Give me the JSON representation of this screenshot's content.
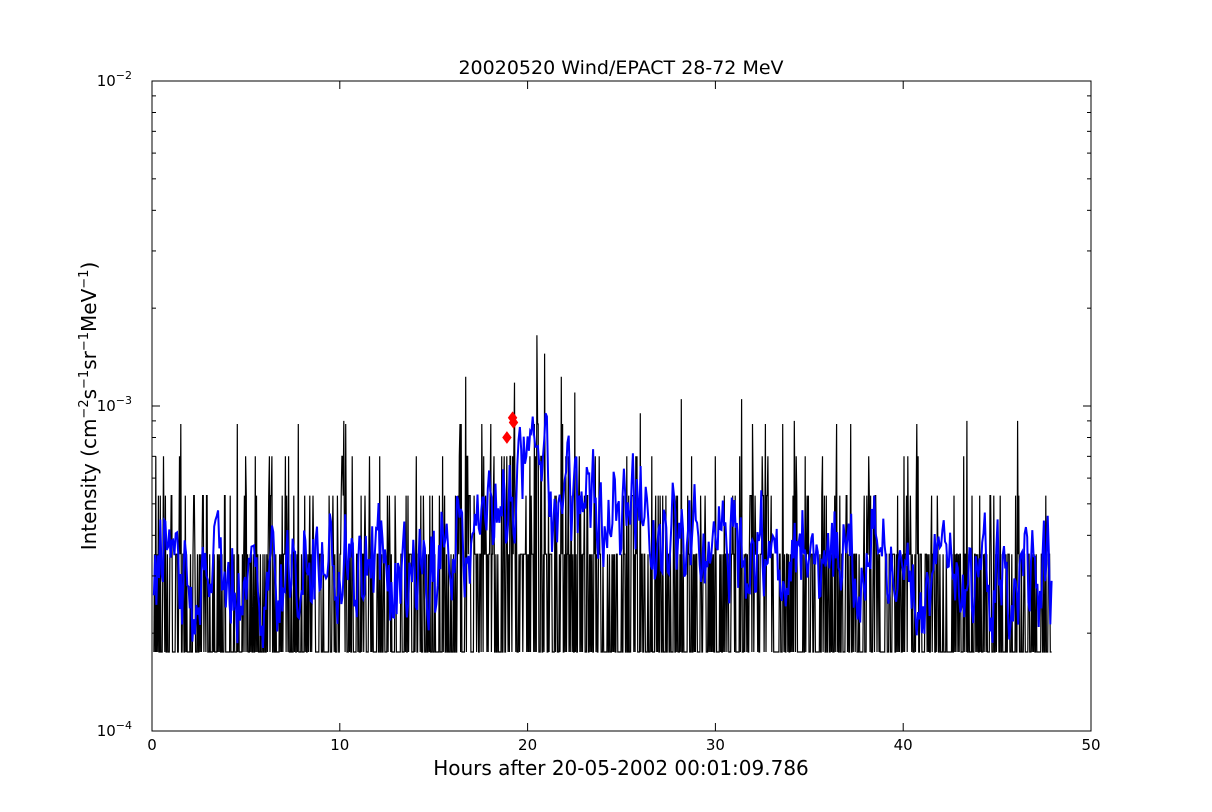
{
  "chart_data": {
    "type": "line",
    "title": "20020520 Wind/EPACT 28-72 MeV",
    "xlabel": "Hours after 20-05-2002 00:01:09.786",
    "ylabel_parts": {
      "lead": "Intensity (cm",
      "sup1": "−2",
      "mid1": "s",
      "sup2": "−1",
      "mid2": "sr",
      "sup3": "−1",
      "mid3": "MeV",
      "sup4": "−1",
      "tail": ")"
    },
    "xlim": [
      0,
      50
    ],
    "ylim": [
      0.0001,
      0.01
    ],
    "yscale": "log",
    "x_ticks": [
      {
        "value": 0,
        "label": "0"
      },
      {
        "value": 10,
        "label": "10"
      },
      {
        "value": 20,
        "label": "20"
      },
      {
        "value": 30,
        "label": "30"
      },
      {
        "value": 40,
        "label": "40"
      },
      {
        "value": 50,
        "label": "50"
      }
    ],
    "y_ticks": [
      {
        "value": 0.0001,
        "base": "10",
        "exp": "−4"
      },
      {
        "value": 0.001,
        "base": "10",
        "exp": "−3"
      },
      {
        "value": 0.01,
        "base": "10",
        "exp": "−2"
      }
    ],
    "grid": false,
    "legend": "none",
    "series": [
      {
        "role": "raw",
        "color": "#000000",
        "x_start": 0.1,
        "x_end": 47.9,
        "floor": 0.000175,
        "levels": [
          0.000175,
          0.00035,
          0.00053,
          0.0007,
          0.00088
        ],
        "envelope": [
          {
            "x": 0,
            "y": 0.00028
          },
          {
            "x": 10,
            "y": 0.00029
          },
          {
            "x": 15,
            "y": 0.0003
          },
          {
            "x": 16.5,
            "y": 0.00042
          },
          {
            "x": 19,
            "y": 0.0006
          },
          {
            "x": 20.5,
            "y": 0.00065
          },
          {
            "x": 23,
            "y": 0.00048
          },
          {
            "x": 27,
            "y": 0.00038
          },
          {
            "x": 33,
            "y": 0.00034
          },
          {
            "x": 48,
            "y": 0.0003
          }
        ],
        "peaks": [
          {
            "x": 20.5,
            "y": 0.00165
          },
          {
            "x": 20.9,
            "y": 0.00145
          },
          {
            "x": 19.3,
            "y": 0.00118
          },
          {
            "x": 16.7,
            "y": 0.00123
          },
          {
            "x": 21.8,
            "y": 0.00123
          },
          {
            "x": 22.5,
            "y": 0.0011
          },
          {
            "x": 28.2,
            "y": 0.00105
          },
          {
            "x": 31.4,
            "y": 0.00105
          },
          {
            "x": 10.2,
            "y": 0.0009
          },
          {
            "x": 7.8,
            "y": 0.00088
          },
          {
            "x": 26.0,
            "y": 0.00095
          },
          {
            "x": 34.2,
            "y": 0.0009
          },
          {
            "x": 37.2,
            "y": 0.00088
          },
          {
            "x": 43.4,
            "y": 0.0009
          },
          {
            "x": 46.1,
            "y": 0.0009
          }
        ]
      },
      {
        "role": "smoothed",
        "color": "#0000ff",
        "profile": [
          {
            "x": 0,
            "y": 0.0003
          },
          {
            "x": 5,
            "y": 0.00028
          },
          {
            "x": 10,
            "y": 0.00031
          },
          {
            "x": 13,
            "y": 0.00029
          },
          {
            "x": 15,
            "y": 0.00029
          },
          {
            "x": 16.5,
            "y": 0.00038
          },
          {
            "x": 18.5,
            "y": 0.00048
          },
          {
            "x": 20,
            "y": 0.00062
          },
          {
            "x": 21,
            "y": 0.00058
          },
          {
            "x": 23,
            "y": 0.00048
          },
          {
            "x": 26,
            "y": 0.0004
          },
          {
            "x": 30,
            "y": 0.00036
          },
          {
            "x": 35,
            "y": 0.00034
          },
          {
            "x": 40,
            "y": 0.00032
          },
          {
            "x": 48,
            "y": 0.00032
          }
        ],
        "min": 0.00018
      }
    ],
    "markers": [
      {
        "x": 18.9,
        "y": 0.0008,
        "color": "#ff0000"
      },
      {
        "x": 19.2,
        "y": 0.00092,
        "color": "#ff0000"
      },
      {
        "x": 19.25,
        "y": 0.00089,
        "color": "#ff0000"
      }
    ]
  }
}
